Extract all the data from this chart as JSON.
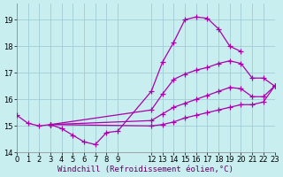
{
  "background_color": "#c8eef0",
  "grid_color": "#a0ccd4",
  "line_color": "#aa00aa",
  "marker": "+",
  "markersize": 4,
  "linewidth": 0.9,
  "markeredgewidth": 0.9,
  "xlim": [
    0,
    23
  ],
  "ylim": [
    14.0,
    19.6
  ],
  "xlabel": "Windchill (Refroidissement éolien,°C)",
  "xlabel_fontsize": 6.5,
  "xlabel_color": "#660066",
  "xtick_positions": [
    0,
    1,
    2,
    3,
    4,
    5,
    6,
    7,
    8,
    9,
    12,
    13,
    14,
    15,
    16,
    17,
    18,
    19,
    20,
    21,
    22,
    23
  ],
  "xtick_labels": [
    "0",
    "1",
    "2",
    "3",
    "4",
    "5",
    "6",
    "7",
    "8",
    "9",
    "12",
    "13",
    "14",
    "15",
    "16",
    "17",
    "18",
    "19",
    "20",
    "21",
    "22",
    "23"
  ],
  "yticks": [
    14,
    15,
    16,
    17,
    18,
    19
  ],
  "tick_fontsize": 6,
  "lines": [
    {
      "x": [
        0,
        1,
        2,
        3,
        4,
        5,
        6,
        7,
        8,
        9,
        12,
        13,
        14,
        15,
        16,
        17,
        18,
        19,
        20,
        21,
        22,
        23
      ],
      "y": [
        15.4,
        15.1,
        15.0,
        15.05,
        14.9,
        14.65,
        14.4,
        14.3,
        14.75,
        14.8,
        16.3,
        17.4,
        18.15,
        19.0,
        19.1,
        19.05,
        18.65,
        18.0,
        17.8,
        null,
        null,
        null
      ]
    },
    {
      "x": [
        3,
        12,
        13,
        14,
        15,
        16,
        17,
        18,
        19,
        20,
        21,
        22,
        23
      ],
      "y": [
        15.05,
        15.6,
        16.2,
        16.75,
        16.95,
        17.1,
        17.2,
        17.35,
        17.45,
        17.35,
        16.8,
        16.8,
        16.5
      ]
    },
    {
      "x": [
        3,
        12,
        13,
        14,
        15,
        16,
        17,
        18,
        19,
        20,
        21,
        22,
        23
      ],
      "y": [
        15.05,
        15.2,
        15.45,
        15.7,
        15.85,
        16.0,
        16.15,
        16.3,
        16.45,
        16.4,
        16.1,
        16.1,
        16.5
      ]
    },
    {
      "x": [
        3,
        12,
        13,
        14,
        15,
        16,
        17,
        18,
        19,
        20,
        21,
        22,
        23
      ],
      "y": [
        15.05,
        15.0,
        15.05,
        15.15,
        15.3,
        15.4,
        15.5,
        15.6,
        15.7,
        15.8,
        15.8,
        15.9,
        16.5
      ]
    }
  ]
}
